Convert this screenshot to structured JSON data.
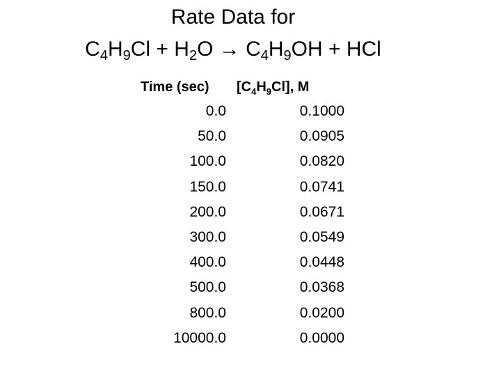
{
  "title": {
    "line1": "Rate Data for",
    "line2": [
      "C",
      "4",
      "H",
      "9",
      "Cl + H",
      "2",
      "O → C",
      "4",
      "H",
      "9",
      "OH + HCl"
    ]
  },
  "table": {
    "header": {
      "time": "Time (sec)",
      "conc": [
        "[C",
        "4",
        "H",
        "9",
        "Cl], M"
      ]
    },
    "rows": [
      [
        "0.0",
        "0.1000"
      ],
      [
        "50.0",
        "0.0905"
      ],
      [
        "100.0",
        "0.0820"
      ],
      [
        "150.0",
        "0.0741"
      ],
      [
        "200.0",
        "0.0671"
      ],
      [
        "300.0",
        "0.0549"
      ],
      [
        "400.0",
        "0.0448"
      ],
      [
        "500.0",
        "0.0368"
      ],
      [
        "800.0",
        "0.0200"
      ],
      [
        "10000.0",
        "0.0000"
      ]
    ]
  }
}
